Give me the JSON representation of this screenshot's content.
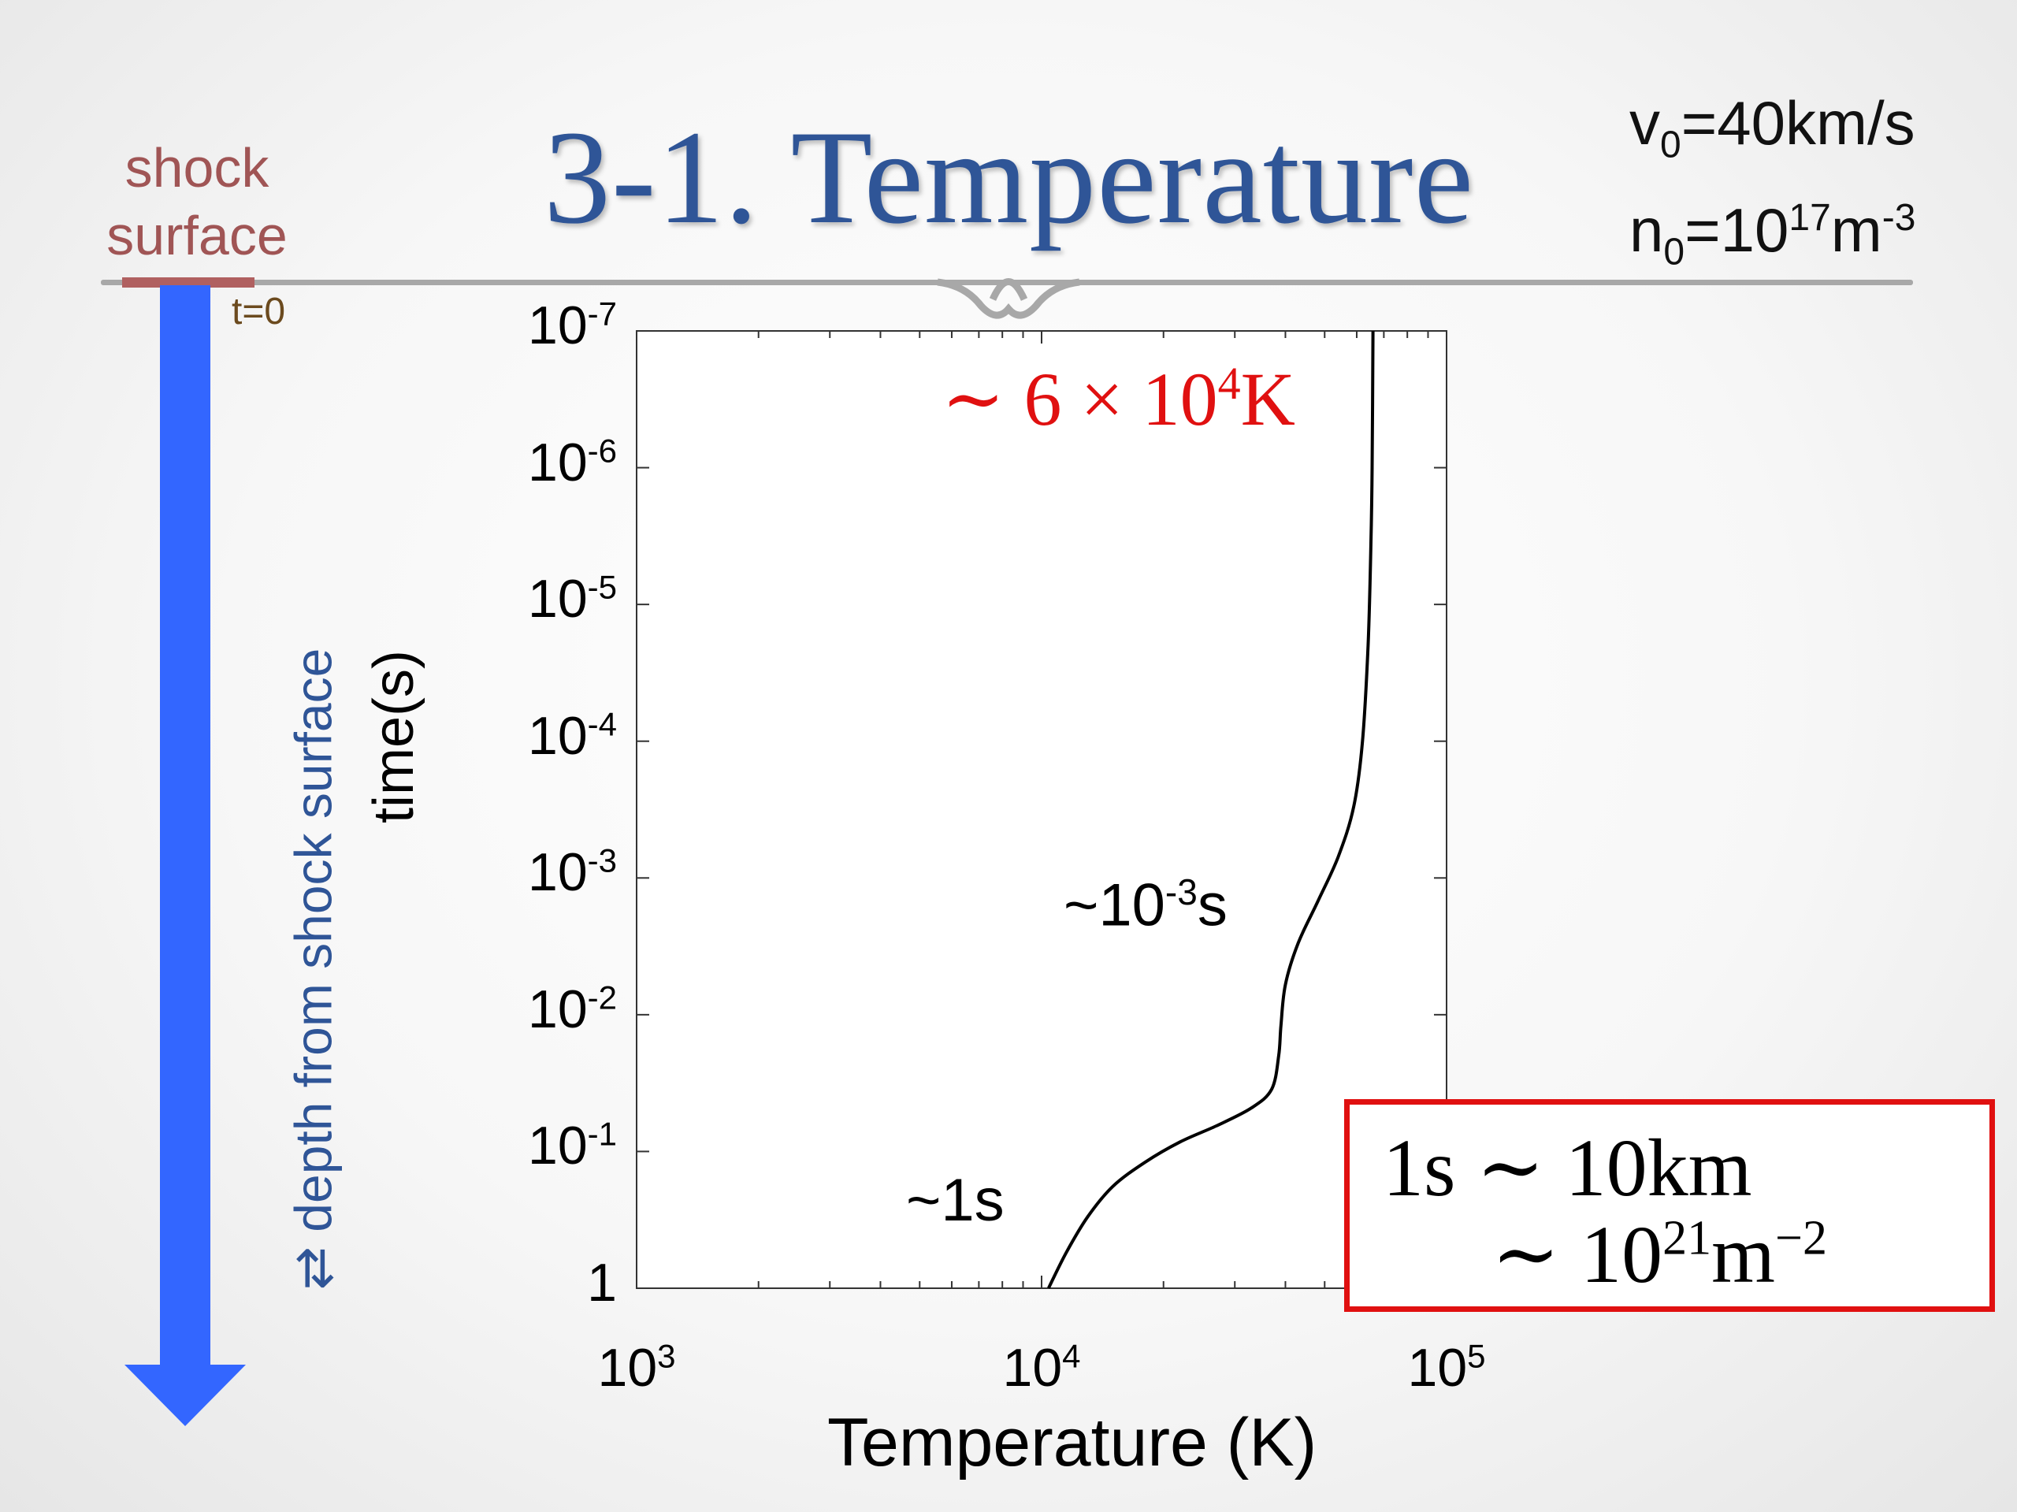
{
  "slide": {
    "title": "3-1. Temperature",
    "params": {
      "v0": "v₀=40km/s",
      "v_name": "v",
      "v_sub": "0",
      "v_rest": "=40km/s",
      "n_name": "n",
      "n_sub": "0",
      "n_eq": "=10",
      "n_exp": "17",
      "n_unit": "m",
      "n_unit_exp": "-3"
    },
    "shock_label_line1": "shock",
    "shock_label_line2": "surface",
    "t0": "t=0",
    "depth_label": "⇄ depth from shock surface",
    "annotations": {
      "a1_base": "~10",
      "a1_exp": "-3",
      "a1_unit": "s",
      "a2": "~1s",
      "red_pre": "∼ 6 × 10",
      "red_exp": "4",
      "red_unit": "K"
    },
    "box": {
      "line1": "1s ∼ 10km",
      "line2_pre": "∼ 10",
      "line2_exp": "21",
      "line2_unit": "m",
      "line2_unit_exp": "−2"
    },
    "colors": {
      "title": "#2f5597",
      "arrow": "#3366ff",
      "red": "#e01010",
      "shock": "#a05555"
    }
  },
  "chart_data": {
    "type": "line",
    "xlabel": "Temperature (K)",
    "ylabel": "time(s)",
    "x_scale": "log",
    "y_scale": "log",
    "y_inverted": true,
    "xlim": [
      1000,
      100000
    ],
    "ylim": [
      1,
      1e-07
    ],
    "xticks": [
      {
        "base": "10",
        "exp": "3"
      },
      {
        "base": "10",
        "exp": "4"
      },
      {
        "base": "10",
        "exp": "5"
      }
    ],
    "yticks": [
      {
        "base": "10",
        "exp": "-7"
      },
      {
        "base": "10",
        "exp": "-6"
      },
      {
        "base": "10",
        "exp": "-5"
      },
      {
        "base": "10",
        "exp": "-4"
      },
      {
        "base": "10",
        "exp": "-3"
      },
      {
        "base": "10",
        "exp": "-2"
      },
      {
        "base": "10",
        "exp": "-1"
      },
      {
        "base": "1",
        "exp": ""
      }
    ],
    "grid": false,
    "series": [
      {
        "points": [
          [
            10400,
            1.0
          ],
          [
            11500,
            0.55
          ],
          [
            13000,
            0.3
          ],
          [
            15000,
            0.18
          ],
          [
            18000,
            0.12
          ],
          [
            22000,
            0.085
          ],
          [
            27000,
            0.065
          ],
          [
            33000,
            0.048
          ],
          [
            37000,
            0.035
          ],
          [
            38500,
            0.02
          ],
          [
            39000,
            0.012
          ],
          [
            40000,
            0.006
          ],
          [
            43000,
            0.003
          ],
          [
            48000,
            0.0015
          ],
          [
            54000,
            0.0007
          ],
          [
            59000,
            0.0003
          ],
          [
            62000,
            0.0001
          ],
          [
            64000,
            2e-05
          ],
          [
            65000,
            4e-06
          ],
          [
            65500,
            1e-06
          ],
          [
            65800,
            1e-07
          ]
        ]
      }
    ]
  }
}
